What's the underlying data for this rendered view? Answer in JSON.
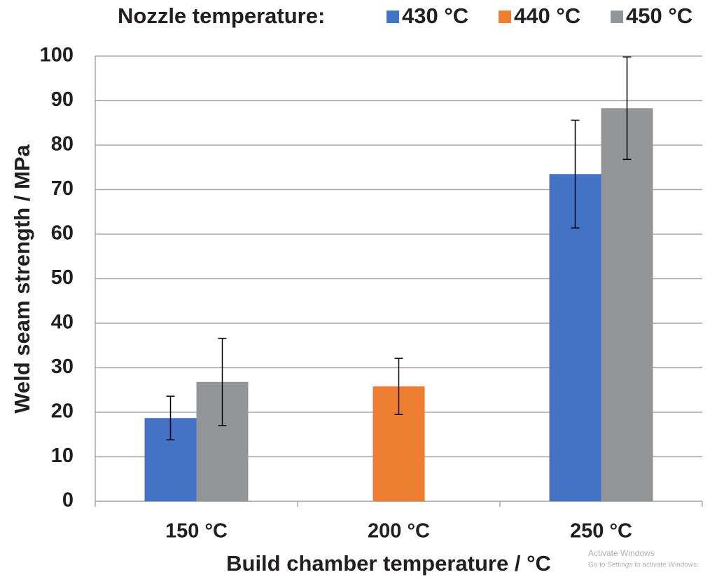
{
  "chart_data": {
    "type": "bar",
    "legend_title": "Nozzle temperature:",
    "x_label": "Build chamber temperature / °C",
    "y_label": "Weld seam strength / MPa",
    "categories": [
      "150 °C",
      "200 °C",
      "250 °C"
    ],
    "series": [
      {
        "name": "430 °C",
        "color": "#4472c4",
        "values": [
          18.7,
          null,
          73.5
        ],
        "error": [
          4.9,
          null,
          12.1
        ]
      },
      {
        "name": "440 °C",
        "color": "#ed7d31",
        "values": [
          null,
          25.8,
          null
        ],
        "error": [
          null,
          6.3,
          null
        ]
      },
      {
        "name": "450 °C",
        "color": "#939598",
        "values": [
          26.8,
          null,
          88.3
        ],
        "error": [
          9.8,
          null,
          11.5
        ]
      }
    ],
    "ylim": [
      0,
      100
    ],
    "yticks": [
      0,
      10,
      20,
      30,
      40,
      50,
      60,
      70,
      80,
      90,
      100
    ],
    "grid": true,
    "legend": "top",
    "watermark": [
      "Activate Windows",
      "Go to Settings to activate Windows."
    ]
  }
}
